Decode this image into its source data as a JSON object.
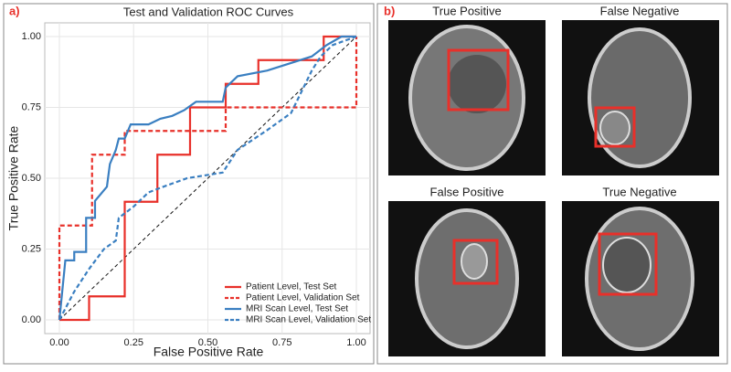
{
  "chart_data": {
    "type": "line",
    "panel_label": "a)",
    "title": "Test and Validation ROC Curves",
    "xlabel": "False Positive Rate",
    "ylabel": "True Positive Rate",
    "xlim": [
      0,
      1
    ],
    "ylim": [
      0,
      1
    ],
    "xticks": [
      {
        "value": 0,
        "label": "0.00"
      },
      {
        "value": 0.25,
        "label": "0.25"
      },
      {
        "value": 0.5,
        "label": "0.50"
      },
      {
        "value": 0.75,
        "label": "0.75"
      },
      {
        "value": 1,
        "label": "1.00"
      }
    ],
    "yticks": [
      {
        "value": 0,
        "label": "0.00"
      },
      {
        "value": 0.25,
        "label": "0.25"
      },
      {
        "value": 0.5,
        "label": "0.50"
      },
      {
        "value": 0.75,
        "label": "0.75"
      },
      {
        "value": 1,
        "label": "1.00"
      }
    ],
    "grid": true,
    "series": [
      {
        "name": "Patient Level, Test Set",
        "color": "#e8302a",
        "dashed": false,
        "x": [
          0,
          0.1,
          0.1,
          0.22,
          0.22,
          0.33,
          0.33,
          0.44,
          0.44,
          0.56,
          0.56,
          0.67,
          0.67,
          0.89,
          0.89,
          1
        ],
        "values": [
          0,
          0,
          0.083,
          0.083,
          0.417,
          0.417,
          0.583,
          0.583,
          0.75,
          0.75,
          0.833,
          0.833,
          0.917,
          0.917,
          1,
          1
        ]
      },
      {
        "name": "Patient Level, Validation Set",
        "color": "#e8302a",
        "dashed": true,
        "x": [
          0,
          0,
          0.11,
          0.11,
          0.22,
          0.22,
          0.56,
          0.56,
          1,
          1
        ],
        "values": [
          0,
          0.333,
          0.333,
          0.583,
          0.583,
          0.667,
          0.667,
          0.75,
          0.75,
          1
        ]
      },
      {
        "name": "MRI Scan Level, Test Set",
        "color": "#3a7fc1",
        "dashed": false,
        "x": [
          0,
          0.02,
          0.05,
          0.05,
          0.09,
          0.09,
          0.12,
          0.12,
          0.16,
          0.17,
          0.19,
          0.2,
          0.22,
          0.24,
          0.3,
          0.34,
          0.38,
          0.42,
          0.46,
          0.55,
          0.56,
          0.6,
          0.7,
          0.85,
          0.9,
          0.95,
          1
        ],
        "values": [
          0,
          0.21,
          0.21,
          0.24,
          0.24,
          0.36,
          0.36,
          0.42,
          0.47,
          0.55,
          0.6,
          0.64,
          0.64,
          0.69,
          0.69,
          0.71,
          0.72,
          0.74,
          0.77,
          0.77,
          0.82,
          0.86,
          0.88,
          0.93,
          0.97,
          1,
          1
        ]
      },
      {
        "name": "MRI Scan Level, Validation Set",
        "color": "#3a7fc1",
        "dashed": true,
        "x": [
          0,
          0.05,
          0.1,
          0.15,
          0.19,
          0.2,
          0.25,
          0.3,
          0.35,
          0.43,
          0.55,
          0.6,
          0.7,
          0.78,
          0.85,
          0.88,
          0.92,
          1
        ],
        "values": [
          0,
          0.1,
          0.18,
          0.25,
          0.28,
          0.36,
          0.4,
          0.45,
          0.47,
          0.5,
          0.52,
          0.6,
          0.67,
          0.73,
          0.88,
          0.93,
          0.97,
          1
        ]
      }
    ]
  },
  "panel_b": {
    "label": "b)",
    "images": [
      {
        "title": "True Positive"
      },
      {
        "title": "False Negative"
      },
      {
        "title": "False Positive"
      },
      {
        "title": "True Negative"
      }
    ]
  }
}
